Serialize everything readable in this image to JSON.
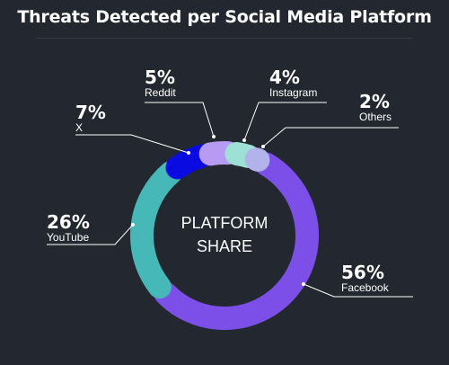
{
  "chart_data": {
    "type": "pie",
    "style": "donut",
    "title": "Threats Detected per Social Media Platform",
    "center_label": [
      "PLATFORM",
      "SHARE"
    ],
    "slices": [
      {
        "label": "Facebook",
        "value": 56,
        "display": "56%",
        "color": "#7b4fe8"
      },
      {
        "label": "YouTube",
        "value": 26,
        "display": "26%",
        "color": "#45b8b7"
      },
      {
        "label": "X",
        "value": 7,
        "display": "7%",
        "color": "#0a0be0"
      },
      {
        "label": "Reddit",
        "value": 5,
        "display": "5%",
        "color": "#b79af2"
      },
      {
        "label": "Instagram",
        "value": 4,
        "display": "4%",
        "color": "#9fe0d6"
      },
      {
        "label": "Others",
        "value": 2,
        "display": "2%",
        "color": "#b3b3ec"
      }
    ],
    "legend": "none"
  },
  "colors": {
    "background": "#23272f",
    "text": "#ffffff",
    "leader_line": "#ffffff"
  }
}
